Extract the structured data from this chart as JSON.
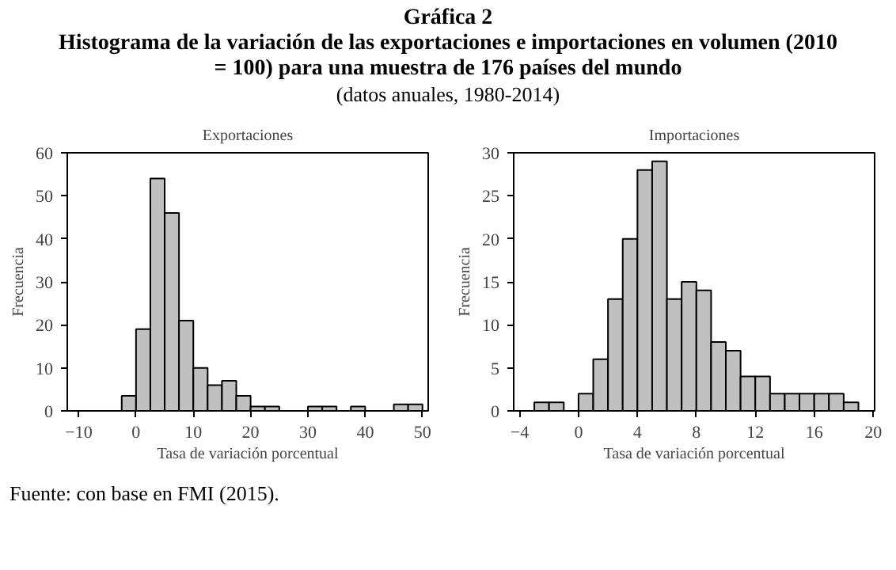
{
  "chart_data": [
    {
      "type": "histogram",
      "title": "Exportaciones",
      "xlabel": "Tasa de variación porcentual",
      "ylabel": "Frecuencia",
      "annotations": [
        "Gráfica 2",
        "Histograma de la variación de las exportaciones e importaciones en volumen (2010 = 100) para una muestra de 176 países del mundo",
        "(datos anuales, 1980-2014)"
      ],
      "bins": [
        -2.5,
        0,
        2.5,
        5,
        7.5,
        10,
        12.5,
        15,
        17.5,
        20,
        22.5,
        25,
        27.5,
        30,
        32.5,
        35,
        37.5,
        40,
        42.5,
        45,
        47.5,
        50
      ],
      "values": [
        3.5,
        19,
        54,
        46,
        21,
        10,
        6,
        7,
        3.5,
        1,
        1,
        0,
        0,
        1,
        1,
        0,
        1,
        0,
        0,
        1.5,
        1.5
      ],
      "color": "#c0c0c0",
      "xlim": [
        -12,
        51
      ],
      "ylim": [
        0,
        60
      ],
      "xticks": [
        {
          "value": -10,
          "label": "−10"
        },
        0,
        10,
        20,
        30,
        40,
        50
      ],
      "yticks": [
        0,
        10,
        20,
        30,
        40,
        50,
        60
      ],
      "grid": false
    },
    {
      "type": "histogram",
      "title": "Importaciones",
      "xlabel": "Tasa de variación porcentual",
      "ylabel": "Frecuencia",
      "annotations": [
        "Fuente: con base en FMI (2015)."
      ],
      "bins": [
        -3,
        -2,
        -1,
        0,
        1,
        2,
        3,
        4,
        5,
        6,
        7,
        8,
        9,
        10,
        11,
        12,
        13,
        14,
        15,
        16,
        17,
        18,
        19
      ],
      "values": [
        1,
        1,
        0,
        2,
        6,
        13,
        20,
        28,
        29,
        13,
        15,
        14,
        8,
        7,
        4,
        4,
        2,
        2,
        2,
        2,
        2,
        1
      ],
      "color": "#c0c0c0",
      "xlim": [
        -4.4,
        20.1
      ],
      "ylim": [
        0,
        30
      ],
      "xticks": [
        {
          "value": -4,
          "label": "−4"
        },
        0,
        4,
        8,
        12,
        16,
        20
      ],
      "yticks": [
        0,
        5,
        10,
        15,
        20,
        25,
        30
      ],
      "grid": false
    }
  ]
}
